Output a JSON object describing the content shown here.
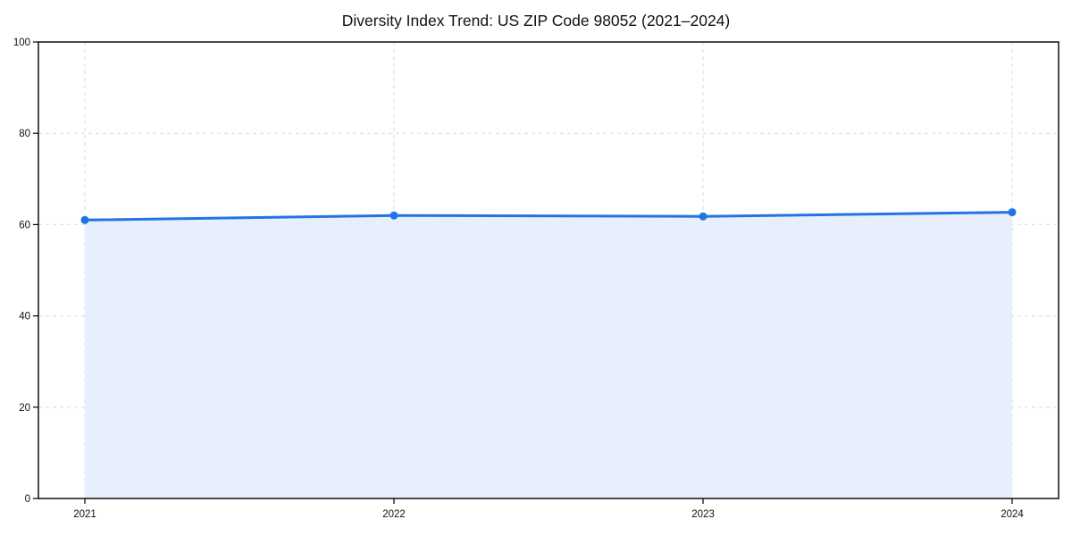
{
  "chart_data": {
    "type": "area",
    "title": "Diversity Index Trend: US ZIP Code 98052 (2021–2024)",
    "categories": [
      "2021",
      "2022",
      "2023",
      "2024"
    ],
    "series": [
      {
        "name": "Diversity Index",
        "values": [
          61.0,
          62.0,
          61.8,
          62.7
        ]
      }
    ],
    "xlabel": "",
    "ylabel": "",
    "ylim": [
      0,
      100
    ],
    "yticks": [
      0,
      20,
      40,
      60,
      80,
      100
    ],
    "grid": true,
    "grid_style": "dashed",
    "legend": false,
    "marker": "circle",
    "colors": {
      "line": "#2274e5",
      "marker": "#2274e5",
      "fill": "#e7effc",
      "grid": "#dcdcdc",
      "spine": "#000000",
      "text": "#111111",
      "background": "#ffffff"
    }
  }
}
